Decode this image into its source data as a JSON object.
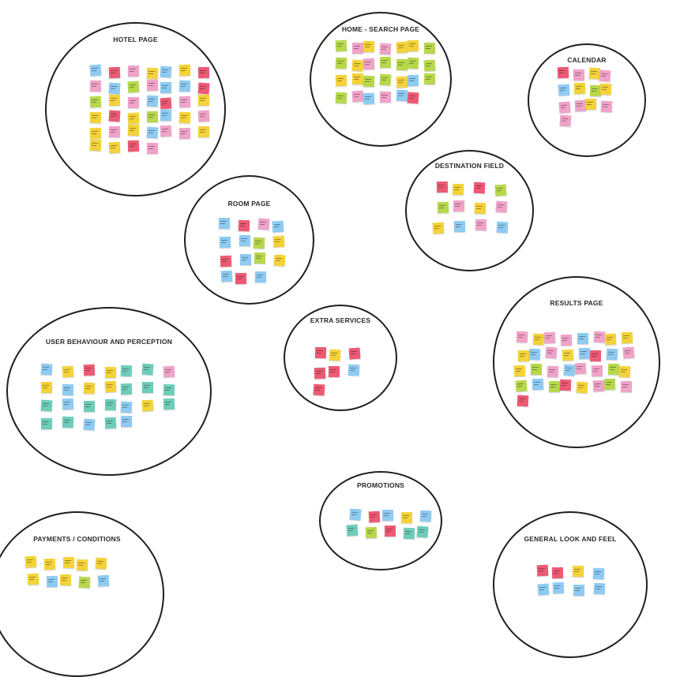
{
  "palette": {
    "yellow": "#f4d339",
    "pink": "#f0a3c8",
    "blue": "#8ecbf2",
    "red": "#ec5a74",
    "green": "#b8d84c",
    "teal": "#6ecdb8"
  },
  "clusters": [
    {
      "id": "hotel",
      "title": "HOTEL PAGE",
      "notes": [
        "blue",
        "red",
        "pink",
        "yellow",
        "blue",
        "yellow",
        "red",
        "pink",
        "blue",
        "green",
        "pink",
        "blue",
        "blue",
        "red",
        "green",
        "yellow",
        "pink",
        "blue",
        "red",
        "pink",
        "yellow",
        "yellow",
        "red",
        "yellow",
        "green",
        "blue",
        "yellow",
        "pink",
        "yellow",
        "pink",
        "yellow",
        "blue",
        "pink",
        "pink",
        "yellow",
        "yellow",
        "yellow",
        "red",
        "pink"
      ]
    },
    {
      "id": "home-search",
      "title": "HOME - SEARCH PAGE",
      "notes": [
        "green",
        "pink",
        "yellow",
        "pink",
        "yellow",
        "yellow",
        "green",
        "green",
        "yellow",
        "pink",
        "green",
        "green",
        "green",
        "green",
        "yellow",
        "yellow",
        "green",
        "green",
        "yellow",
        "blue",
        "green",
        "green",
        "pink",
        "blue",
        "pink",
        "blue",
        "red"
      ]
    },
    {
      "id": "calendar",
      "title": "CALENDAR",
      "notes": [
        "red",
        "pink",
        "yellow",
        "pink",
        "blue",
        "yellow",
        "green",
        "yellow",
        "pink",
        "pink",
        "yellow",
        "pink",
        "pink"
      ]
    },
    {
      "id": "destination",
      "title": "DESTINATION FIELD",
      "notes": [
        "red",
        "yellow",
        "red",
        "green",
        "green",
        "pink",
        "yellow",
        "pink",
        "yellow",
        "blue",
        "pink",
        "blue"
      ]
    },
    {
      "id": "room",
      "title": "ROOM PAGE",
      "notes": [
        "blue",
        "red",
        "pink",
        "blue",
        "blue",
        "blue",
        "green",
        "yellow",
        "red",
        "blue",
        "green",
        "yellow",
        "blue",
        "red",
        "blue"
      ]
    },
    {
      "id": "extra",
      "title": "EXTRA SERVICES",
      "notes": [
        "red",
        "yellow",
        "red",
        "red",
        "red",
        "blue",
        "red"
      ]
    },
    {
      "id": "results",
      "title": "RESULTS PAGE",
      "notes": [
        "pink",
        "yellow",
        "pink",
        "pink",
        "blue",
        "pink",
        "yellow",
        "yellow",
        "yellow",
        "blue",
        "pink",
        "yellow",
        "blue",
        "red",
        "blue",
        "pink",
        "yellow",
        "green",
        "pink",
        "blue",
        "pink",
        "pink",
        "green",
        "yellow",
        "green",
        "blue",
        "green",
        "red",
        "yellow",
        "pink",
        "green",
        "pink",
        "red"
      ]
    },
    {
      "id": "user-behaviour",
      "title": "USER BEHAVIOUR AND PERCEPTION",
      "notes": [
        "blue",
        "yellow",
        "red",
        "yellow",
        "teal",
        "teal",
        "pink",
        "yellow",
        "blue",
        "yellow",
        "yellow",
        "teal",
        "teal",
        "teal",
        "teal",
        "blue",
        "teal",
        "teal",
        "blue",
        "yellow",
        "teal",
        "teal",
        "teal",
        "blue",
        "teal",
        "blue"
      ]
    },
    {
      "id": "promotions",
      "title": "PROMOTIONS",
      "notes": [
        "blue",
        "red",
        "blue",
        "yellow",
        "blue",
        "teal",
        "green",
        "red",
        "teal",
        "teal"
      ]
    },
    {
      "id": "payments",
      "title": "PAYMENTS / CONDITIONS",
      "notes": [
        "yellow",
        "yellow",
        "yellow",
        "yellow",
        "yellow",
        "yellow",
        "blue",
        "yellow",
        "green",
        "blue"
      ]
    },
    {
      "id": "general-look",
      "title": "GENERAL LOOK AND FEEL",
      "notes": [
        "red",
        "red",
        "yellow",
        "blue",
        "blue",
        "blue",
        "blue",
        "blue"
      ]
    }
  ]
}
